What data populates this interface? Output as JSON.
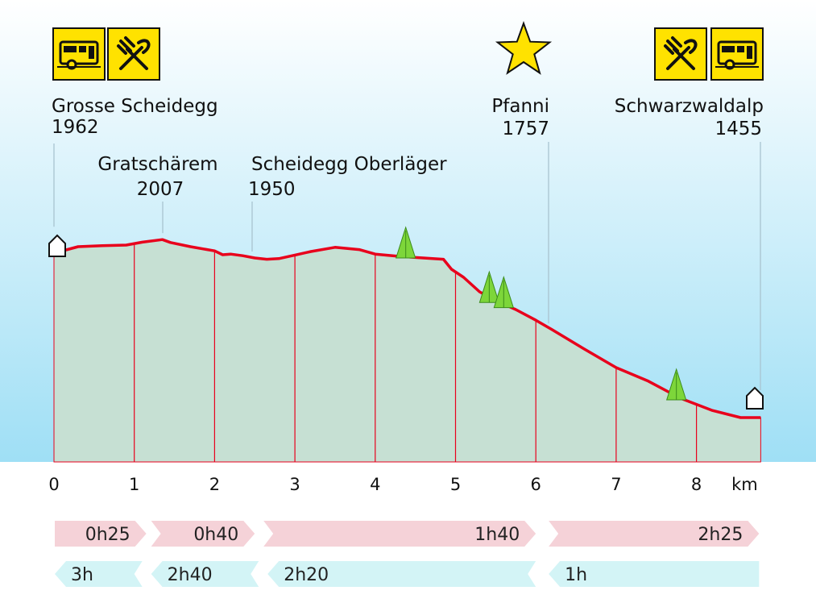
{
  "chart_data": {
    "type": "area",
    "title": "",
    "xlabel": "km",
    "ylabel": "",
    "x_unit": "km",
    "xlim": [
      0,
      8.8
    ],
    "ylim": [
      1120,
      2250
    ],
    "x_ticks": [
      "0",
      "1",
      "2",
      "3",
      "4",
      "5",
      "6",
      "7",
      "8"
    ],
    "x_unit_label": "km",
    "profile": {
      "x": [
        0,
        0.15,
        0.3,
        0.6,
        0.9,
        1.1,
        1.35,
        1.45,
        1.7,
        2.0,
        2.1,
        2.2,
        2.35,
        2.5,
        2.65,
        2.8,
        3.0,
        3.2,
        3.5,
        3.8,
        4.0,
        4.3,
        4.6,
        4.85,
        4.95,
        5.1,
        5.3,
        5.5,
        5.75,
        6.0,
        6.2,
        6.6,
        7.0,
        7.4,
        7.8,
        8.2,
        8.55
      ],
      "y": [
        1962,
        1975,
        1985,
        1988,
        1990,
        1999,
        2007,
        1998,
        1985,
        1972,
        1960,
        1962,
        1957,
        1950,
        1946,
        1948,
        1959,
        1970,
        1983,
        1976,
        1962,
        1955,
        1950,
        1946,
        1915,
        1890,
        1845,
        1818,
        1790,
        1757,
        1728,
        1668,
        1610,
        1568,
        1515,
        1477,
        1455
      ]
    },
    "locations": [
      {
        "name": "Grosse Scheidegg",
        "elevation": "1962",
        "km": 0,
        "icons": [
          "bus-icon",
          "restaurant-icon"
        ],
        "marker": "building"
      },
      {
        "name": "Gratschärem",
        "elevation": "2007",
        "km": 1.35
      },
      {
        "name": "Scheidegg Oberläger",
        "elevation": "1950",
        "km": 2.5
      },
      {
        "name": "Pfanni",
        "elevation": "1757",
        "km": 6.15,
        "icons": [
          "star-icon"
        ]
      },
      {
        "name": "Schwarzwaldalp",
        "elevation": "1455",
        "km": 8.78,
        "icons": [
          "restaurant-icon",
          "bus-icon"
        ],
        "marker": "building"
      }
    ],
    "trees": [
      {
        "km": 4.38,
        "elevation": 1950
      },
      {
        "km": 5.42,
        "elevation": 1812
      },
      {
        "km": 5.6,
        "elevation": 1796
      },
      {
        "km": 7.75,
        "elevation": 1510
      }
    ],
    "forward_times": [
      {
        "label": "0h25",
        "from_km": 0,
        "to_km": 1.15
      },
      {
        "label": "0h40",
        "from_km": 1.2,
        "to_km": 2.5
      },
      {
        "label": "1h40",
        "from_km": 2.6,
        "to_km": 6.0
      },
      {
        "label": "2h25",
        "from_km": 6.15,
        "to_km": 8.78
      }
    ],
    "return_times": [
      {
        "label": "3h",
        "from_km": 0,
        "to_km": 1.1
      },
      {
        "label": "2h40",
        "from_km": 1.2,
        "to_km": 2.55
      },
      {
        "label": "2h20",
        "from_km": 2.65,
        "to_km": 6.0
      },
      {
        "label": "1h",
        "from_km": 6.15,
        "to_km": 8.78
      }
    ],
    "colors": {
      "sky_top": "#ffffff",
      "sky_bottom": "#9fdff5",
      "profile_fill": "#c6e0d3",
      "profile_line": "#e8001c",
      "grid_line": "#e8001c",
      "icon_bg": "#ffe200",
      "star": "#ffe200",
      "tree": "#7dd63a",
      "forward_arrow": "#f5d2d8",
      "return_arrow": "#d3f4f6",
      "leader_line": "#a9c4d0"
    }
  }
}
